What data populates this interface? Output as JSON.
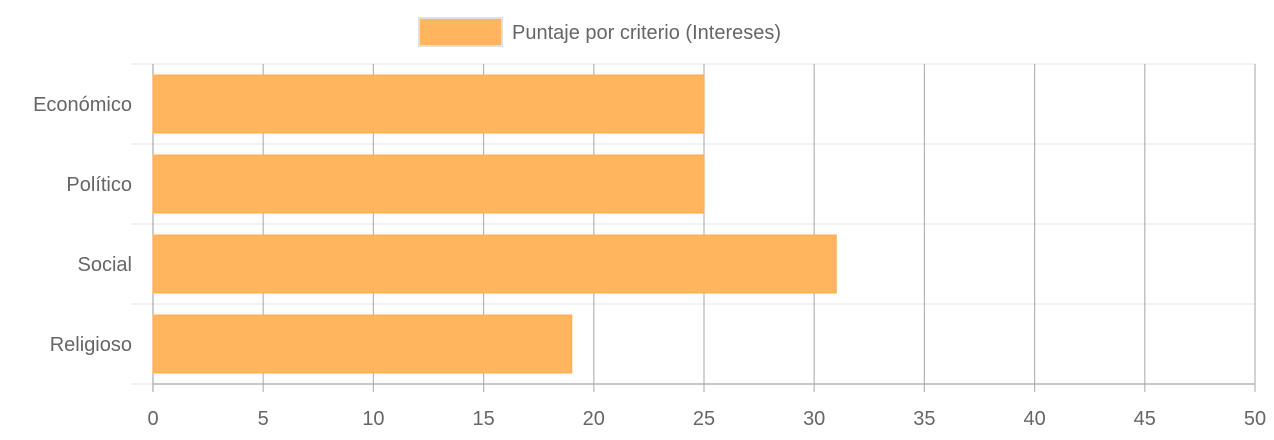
{
  "chart_data": {
    "type": "bar",
    "orientation": "horizontal",
    "categories": [
      "Económico",
      "Político",
      "Social",
      "Religioso"
    ],
    "series": [
      {
        "name": "Puntaje por criterio (Intereses)",
        "values": [
          25,
          25,
          31,
          19
        ],
        "color": "#ffb45e"
      }
    ],
    "xlim": [
      0,
      50
    ],
    "xticks": [
      0,
      5,
      10,
      15,
      20,
      25,
      30,
      35,
      40,
      45,
      50
    ],
    "grid": true,
    "legend_position": "top-center"
  }
}
